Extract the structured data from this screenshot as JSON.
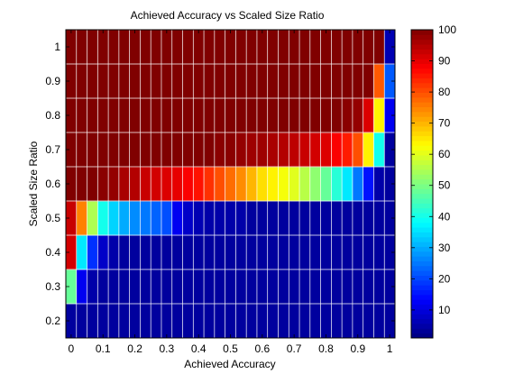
{
  "chart_data": {
    "type": "heatmap",
    "title": "Achieved Accuracy vs Scaled Size Ratio",
    "xlabel": "Achieved Accuracy",
    "ylabel": "Scaled Size Ratio",
    "x_ticks": [
      "0",
      "0.1",
      "0.2",
      "0.3",
      "0.4",
      "0.5",
      "0.6",
      "0.7",
      "0.8",
      "0.9",
      "1"
    ],
    "y_ticks": [
      "0.2",
      "0.3",
      "0.4",
      "0.5",
      "0.6",
      "0.7",
      "0.8",
      "0.9",
      "1"
    ],
    "colorbar_ticks": [
      "10",
      "20",
      "30",
      "40",
      "50",
      "60",
      "70",
      "80",
      "90",
      "100"
    ],
    "colormap": "jet",
    "clim": [
      1,
      100
    ],
    "x_centers": [
      0,
      0.0333,
      0.0667,
      0.1,
      0.1333,
      0.1667,
      0.2,
      0.2333,
      0.2667,
      0.3,
      0.3333,
      0.3667,
      0.4,
      0.4333,
      0.4667,
      0.5,
      0.5333,
      0.5667,
      0.6,
      0.6333,
      0.6667,
      0.7,
      0.7333,
      0.7667,
      0.8,
      0.8333,
      0.8667,
      0.9,
      0.9333,
      0.9667,
      1.0
    ],
    "y_centers": [
      0.2,
      0.3,
      0.4,
      0.5,
      0.6,
      0.7,
      0.8,
      0.9,
      1.0
    ],
    "values": [
      [
        4,
        4,
        4,
        4,
        4,
        4,
        4,
        4,
        4,
        4,
        4,
        4,
        4,
        4,
        4,
        4,
        4,
        4,
        4,
        4,
        4,
        4,
        4,
        4,
        4,
        4,
        4,
        4,
        4,
        4,
        4
      ],
      [
        48,
        12,
        5,
        4,
        4,
        4,
        4,
        4,
        4,
        4,
        4,
        4,
        4,
        4,
        4,
        4,
        4,
        4,
        4,
        4,
        4,
        4,
        4,
        4,
        4,
        4,
        4,
        4,
        4,
        4,
        4
      ],
      [
        92,
        36,
        18,
        8,
        5,
        4,
        4,
        4,
        4,
        4,
        4,
        4,
        4,
        4,
        4,
        4,
        4,
        4,
        4,
        4,
        4,
        4,
        4,
        4,
        4,
        4,
        4,
        4,
        4,
        4,
        4
      ],
      [
        93,
        75,
        55,
        40,
        34,
        30,
        27,
        25,
        23,
        21,
        12,
        8,
        6,
        5,
        5,
        5,
        5,
        4,
        4,
        4,
        4,
        4,
        4,
        4,
        4,
        4,
        4,
        4,
        4,
        4,
        4
      ],
      [
        100,
        100,
        100,
        99,
        98,
        96,
        95,
        93,
        92,
        91,
        90,
        88,
        86,
        83,
        80,
        77,
        74,
        70,
        66,
        64,
        62,
        60,
        56,
        52,
        48,
        42,
        36,
        25,
        15,
        5,
        4
      ],
      [
        100,
        100,
        100,
        100,
        100,
        100,
        100,
        100,
        100,
        100,
        100,
        100,
        100,
        100,
        99,
        99,
        98,
        97,
        97,
        96,
        95,
        94,
        93,
        92,
        91,
        88,
        85,
        80,
        64,
        40,
        4
      ],
      [
        100,
        100,
        100,
        100,
        100,
        100,
        100,
        100,
        100,
        100,
        100,
        100,
        100,
        100,
        100,
        100,
        100,
        100,
        100,
        100,
        100,
        100,
        100,
        100,
        100,
        100,
        99,
        98,
        91,
        64,
        12
      ],
      [
        100,
        100,
        100,
        100,
        100,
        100,
        100,
        100,
        100,
        100,
        100,
        100,
        100,
        100,
        100,
        100,
        100,
        100,
        100,
        100,
        100,
        100,
        100,
        100,
        100,
        100,
        100,
        100,
        100,
        79,
        22
      ],
      [
        100,
        100,
        100,
        100,
        100,
        100,
        100,
        100,
        100,
        100,
        100,
        100,
        100,
        100,
        100,
        100,
        100,
        100,
        100,
        100,
        100,
        100,
        100,
        100,
        100,
        100,
        100,
        100,
        100,
        100,
        6
      ]
    ]
  }
}
